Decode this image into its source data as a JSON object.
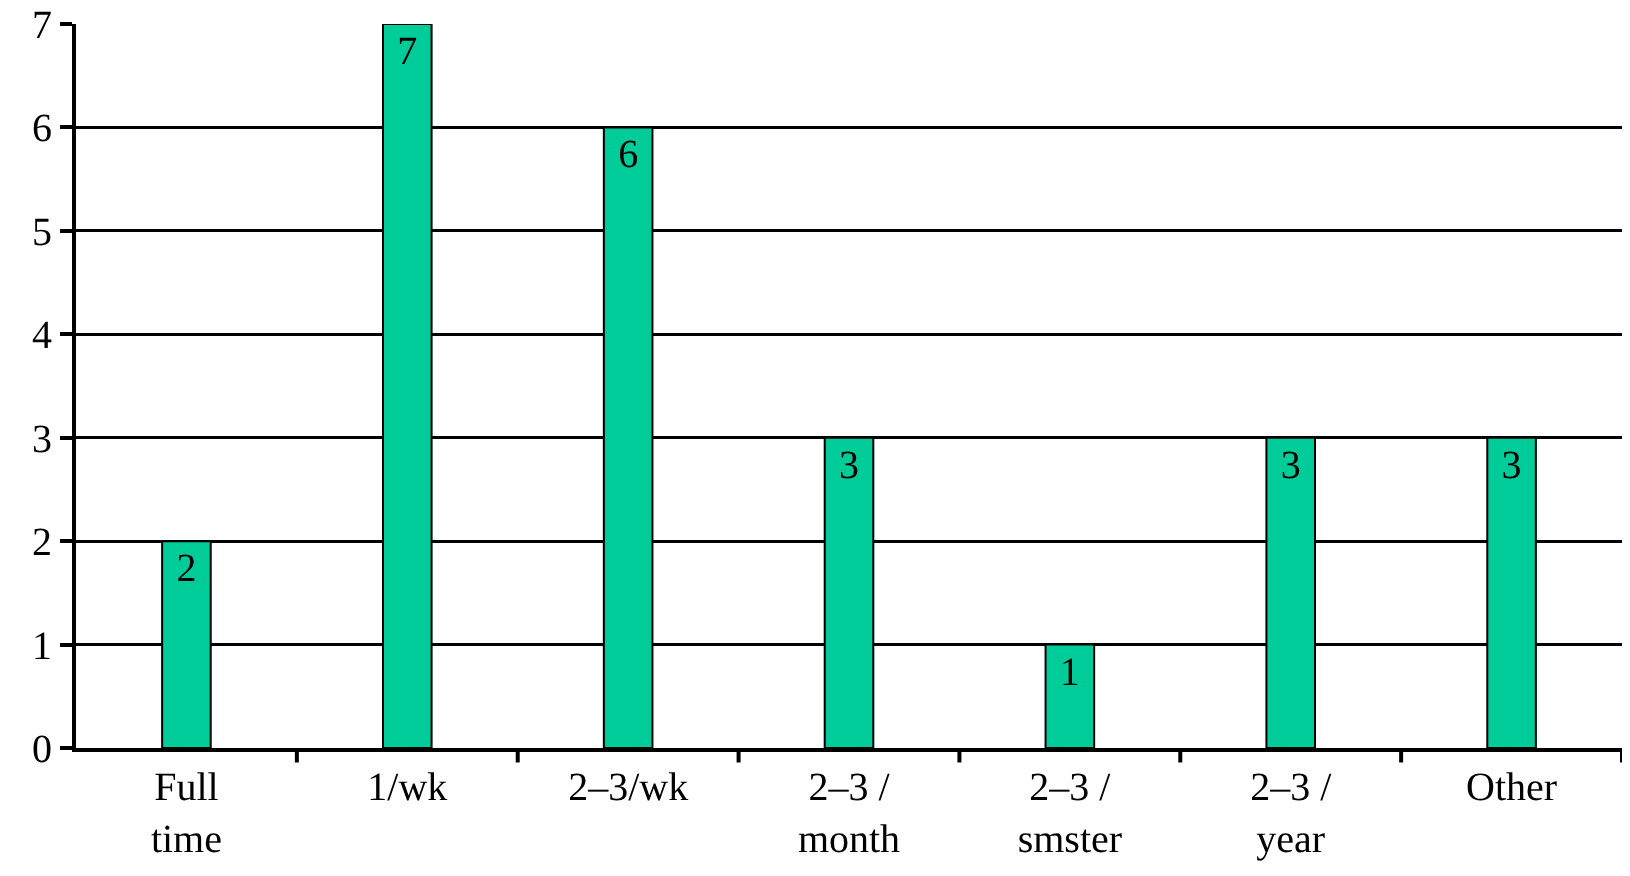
{
  "chart_data": {
    "type": "bar",
    "categories": [
      "Full time",
      "1/wk",
      "2–3/wk",
      "2–3 / month",
      "2–3 / smster",
      "2–3 / year",
      "Other"
    ],
    "values": [
      2,
      7,
      6,
      3,
      1,
      3,
      3
    ],
    "color": "#00cc99",
    "ylim": [
      0,
      7
    ],
    "yticks": [
      0,
      1,
      2,
      3,
      4,
      5,
      6,
      7
    ],
    "grid": "y",
    "data_labels": true
  }
}
